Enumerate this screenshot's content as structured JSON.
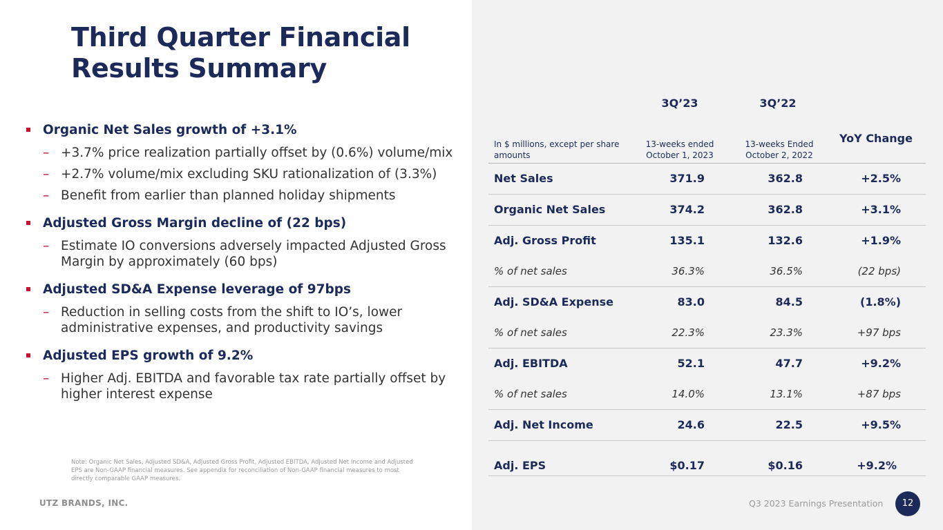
{
  "title_lines": [
    "Third Quarter Financial",
    "Results Summary"
  ],
  "bullets": [
    {
      "head": "Organic Net Sales growth of +3.1%",
      "subs": [
        [
          "+3.7% price realization partially offset by (0.6%) volume/mix"
        ],
        [
          "+2.7% volume/mix excluding SKU rationalization of (3.3%)"
        ],
        [
          "Benefit from earlier than planned holiday shipments"
        ]
      ]
    },
    {
      "head": "Adjusted Gross Margin decline of (22 bps)",
      "subs": [
        [
          "Estimate IO conversions adversely impacted Adjusted Gross",
          "Margin by approximately (60 bps)"
        ]
      ]
    },
    {
      "head": "Adjusted SD&A Expense leverage of 97bps",
      "subs": [
        [
          "Reduction in selling costs from the shift to IO’s, lower",
          "administrative expenses, and productivity savings"
        ]
      ]
    },
    {
      "head": "Adjusted EPS growth of 9.2%",
      "subs": [
        [
          "Higher Adj. EBITDA and favorable tax rate partially offset by",
          "higher interest expense"
        ]
      ]
    }
  ],
  "dash_glyph": "–",
  "note_lines": [
    "Note:  Organic Net Sales, Adjusted SD&A, Adjusted Gross Profit, Adjusted EBITDA, Adjusted Net Income and Adjusted",
    "EPS are Non-GAAP financial measures. See appendix for reconciliation of Non-GAAP financial measures to most",
    "directly comparable GAAP measures."
  ],
  "company": "UTZ BRANDS, INC.",
  "presentation": "Q3 2023 Earnings Presentation",
  "page_number": "12",
  "table": {
    "col_period_1": "3Q’23",
    "col_period_2": "3Q’22",
    "unit_note": "In $ millions, except per share amounts",
    "col_sub_1": "13-weeks ended October 1, 2023",
    "col_sub_2": "13-weeks Ended October 2, 2022",
    "col_change": "YoY Change",
    "rows": [
      {
        "label": "Net Sales",
        "v1": "371.9",
        "v2": "362.8",
        "v3": "+2.5%"
      },
      {
        "label": "Organic Net Sales",
        "v1": "374.2",
        "v2": "362.8",
        "v3": "+3.1%"
      },
      {
        "label": "Adj. Gross Profit",
        "v1": "135.1",
        "v2": "132.6",
        "v3": "+1.9%"
      },
      {
        "label": "% of net sales",
        "v1": "36.3%",
        "v2": "36.5%",
        "v3": "(22 bps)"
      },
      {
        "label": "Adj. SD&A Expense",
        "v1": "83.0",
        "v2": "84.5",
        "v3": "(1.8%)"
      },
      {
        "label": "% of net sales",
        "v1": "22.3%",
        "v2": "23.3%",
        "v3": "+97 bps"
      },
      {
        "label": "Adj. EBITDA",
        "v1": "52.1",
        "v2": "47.7",
        "v3": "+9.2%"
      },
      {
        "label": "% of net sales",
        "v1": "14.0%",
        "v2": "13.1%",
        "v3": "+87 bps"
      },
      {
        "label": "Adj. Net Income",
        "v1": "24.6",
        "v2": "22.5",
        "v3": "+9.5%"
      },
      {
        "label": "Adj. EPS",
        "v1": "$0.17",
        "v2": "$0.16",
        "v3": "+9.2%"
      }
    ]
  },
  "colors": {
    "navy": "#1b2a59",
    "red_accent": "#c8102e",
    "panel_gray": "#f2f2f2"
  }
}
